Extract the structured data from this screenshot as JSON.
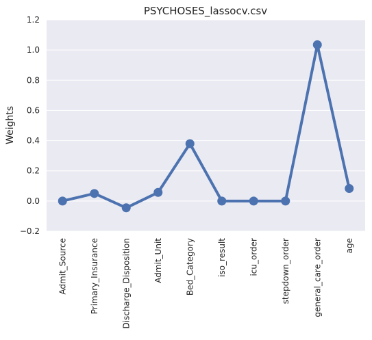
{
  "chart_data": {
    "type": "line",
    "title": "PSYCHOSES_lassocv.csv",
    "xlabel": "",
    "ylabel": "Weights",
    "categories": [
      "Admit_Source",
      "Primary_Insurance",
      "Discharge_Disposition",
      "Admit_Unit",
      "Bed_Category",
      "iso_result",
      "icu_order",
      "stepdown_order",
      "general_care_order",
      "age"
    ],
    "values": [
      0.0,
      0.05,
      -0.045,
      0.057,
      0.38,
      0.0,
      0.0,
      0.0,
      1.035,
      0.083
    ],
    "ylim": [
      -0.2,
      1.2
    ],
    "yticks": [
      -0.2,
      0.0,
      0.2,
      0.4,
      0.6,
      0.8,
      1.0,
      1.2
    ],
    "ytick_labels": [
      "−0.2",
      "0.0",
      "0.2",
      "0.4",
      "0.6",
      "0.8",
      "1.0",
      "1.2"
    ],
    "grid": true,
    "colors": {
      "series": "#4c72b0",
      "background": "#eaeaf2",
      "grid": "#ffffff"
    }
  }
}
